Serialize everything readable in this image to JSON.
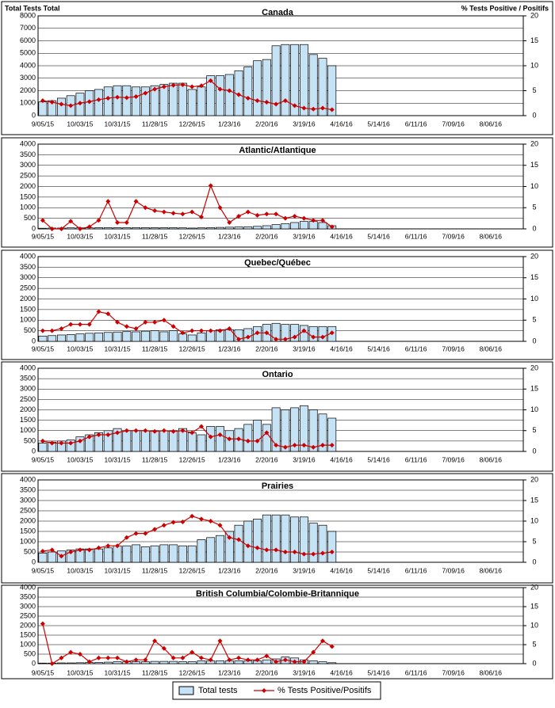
{
  "chart_data": [
    {
      "type": "combo",
      "title": "Canada",
      "y_label": "Total Tests Total",
      "y2_label": "% Tests Positive / Positifs",
      "categories": [
        "9/05/15",
        null,
        null,
        null,
        "10/03/15",
        null,
        null,
        null,
        "10/31/15",
        null,
        null,
        null,
        "11/28/15",
        null,
        null,
        null,
        "12/26/15",
        null,
        null,
        null,
        "1/23/16",
        null,
        null,
        null,
        "2/20/16",
        null,
        null,
        null,
        "3/19/16",
        null,
        null,
        null,
        "4/16/16",
        null,
        null,
        null,
        "5/14/16",
        null,
        null,
        null,
        "6/11/16",
        null,
        null,
        null,
        "7/09/16",
        null,
        null,
        null,
        "8/06/16",
        null,
        null,
        null
      ],
      "ylim": [
        0,
        8000
      ],
      "yticks": [
        0,
        1000,
        2000,
        3000,
        4000,
        5000,
        6000,
        7000,
        8000
      ],
      "y2lim": [
        0,
        20
      ],
      "y2ticks": [
        0,
        5,
        10,
        15,
        20
      ],
      "series": [
        {
          "name": "Total tests",
          "type": "bar",
          "color": "#c6e2f5",
          "values": [
            1100,
            1200,
            1400,
            1600,
            1800,
            2000,
            2100,
            2300,
            2400,
            2400,
            2300,
            2300,
            2400,
            2500,
            2600,
            2600,
            2100,
            2300,
            3200,
            3200,
            3300,
            3600,
            3900,
            4400,
            4500,
            5600,
            5700,
            5700,
            5700,
            4900,
            4600,
            4000,
            null,
            null,
            null,
            null,
            null,
            null,
            null,
            null,
            null,
            null,
            null,
            null,
            null,
            null,
            null,
            null,
            null,
            null,
            null,
            null
          ]
        },
        {
          "name": "% Tests Positive/Positifs",
          "type": "line",
          "axis": "y2",
          "color": "#cc0000",
          "values": [
            3,
            2.7,
            2.3,
            2,
            2.5,
            2.8,
            3.2,
            3.5,
            3.7,
            3.6,
            3.8,
            4.5,
            5.3,
            5.8,
            6.1,
            6.2,
            5.8,
            6,
            7,
            5.3,
            5,
            4.2,
            3.5,
            3,
            2.7,
            2.3,
            3,
            2,
            1.5,
            1.3,
            1.5,
            1.2,
            null,
            null,
            null,
            null,
            null,
            null,
            null,
            null,
            null,
            null,
            null,
            null,
            null,
            null,
            null,
            null,
            null,
            null,
            null,
            null
          ]
        }
      ]
    },
    {
      "type": "combo",
      "title": "Atlantic/Atlantique",
      "categories": [
        "9/05/15",
        null,
        null,
        null,
        "10/03/15",
        null,
        null,
        null,
        "10/31/15",
        null,
        null,
        null,
        "11/28/15",
        null,
        null,
        null,
        "12/26/15",
        null,
        null,
        null,
        "1/23/16",
        null,
        null,
        null,
        "2/20/16",
        null,
        null,
        null,
        "3/19/16",
        null,
        null,
        null,
        "4/16/16",
        null,
        null,
        null,
        "5/14/16",
        null,
        null,
        null,
        "6/11/16",
        null,
        null,
        null,
        "7/09/16",
        null,
        null,
        null,
        "8/06/16",
        null,
        null,
        null
      ],
      "ylim": [
        0,
        4000
      ],
      "yticks": [
        0,
        500,
        1000,
        1500,
        2000,
        2500,
        3000,
        3500,
        4000
      ],
      "y2lim": [
        0,
        20
      ],
      "y2ticks": [
        0,
        5,
        10,
        15,
        20
      ],
      "series": [
        {
          "type": "bar",
          "color": "#c6e2f5",
          "values": [
            30,
            40,
            40,
            50,
            50,
            50,
            60,
            60,
            60,
            60,
            60,
            60,
            60,
            60,
            60,
            50,
            40,
            50,
            60,
            70,
            80,
            90,
            100,
            120,
            150,
            200,
            250,
            300,
            350,
            350,
            300,
            150,
            null,
            null,
            null,
            null,
            null,
            null,
            null,
            null,
            null,
            null,
            null,
            null,
            null,
            null,
            null,
            null,
            null,
            null,
            null,
            null
          ]
        },
        {
          "type": "line",
          "axis": "y2",
          "color": "#cc0000",
          "values": [
            2,
            0,
            0,
            1.8,
            0,
            0.5,
            2,
            6.5,
            1.5,
            1.5,
            6.5,
            5,
            4.3,
            4,
            3.7,
            3.5,
            4,
            2.8,
            10.2,
            5,
            1.5,
            3,
            4,
            3.2,
            3.5,
            3.5,
            2.5,
            3,
            2.5,
            2,
            2,
            0.5,
            null,
            null,
            null,
            null,
            null,
            null,
            null,
            null,
            null,
            null,
            null,
            null,
            null,
            null,
            null,
            null,
            null,
            null,
            null,
            null
          ]
        }
      ]
    },
    {
      "type": "combo",
      "title": "Quebec/Québec",
      "categories": [
        "9/05/15",
        null,
        null,
        null,
        "10/03/15",
        null,
        null,
        null,
        "10/31/15",
        null,
        null,
        null,
        "11/28/15",
        null,
        null,
        null,
        "12/26/15",
        null,
        null,
        null,
        "1/23/16",
        null,
        null,
        null,
        "2/20/16",
        null,
        null,
        null,
        "3/19/16",
        null,
        null,
        null,
        "4/16/16",
        null,
        null,
        null,
        "5/14/16",
        null,
        null,
        null,
        "6/11/16",
        null,
        null,
        null,
        "7/09/16",
        null,
        null,
        null,
        "8/06/16",
        null,
        null,
        null
      ],
      "ylim": [
        0,
        4000
      ],
      "yticks": [
        0,
        500,
        1000,
        1500,
        2000,
        2500,
        3000,
        3500,
        4000
      ],
      "y2lim": [
        0,
        20
      ],
      "y2ticks": [
        0,
        5,
        10,
        15,
        20
      ],
      "series": [
        {
          "type": "bar",
          "color": "#c6e2f5",
          "values": [
            250,
            270,
            300,
            320,
            350,
            380,
            400,
            420,
            440,
            460,
            450,
            480,
            500,
            450,
            500,
            350,
            300,
            400,
            500,
            550,
            550,
            550,
            600,
            700,
            800,
            850,
            800,
            800,
            750,
            700,
            700,
            700,
            null,
            null,
            null,
            null,
            null,
            null,
            null,
            null,
            null,
            null,
            null,
            null,
            null,
            null,
            null,
            null,
            null,
            null,
            null,
            null
          ]
        },
        {
          "type": "line",
          "axis": "y2",
          "color": "#cc0000",
          "values": [
            2.5,
            2.5,
            3,
            4,
            4,
            4,
            7,
            6.5,
            4.5,
            3.5,
            3,
            4.5,
            4.5,
            5,
            3.5,
            2,
            2.5,
            2.5,
            2.5,
            2.5,
            3,
            0.5,
            1,
            2,
            2,
            0.5,
            0.5,
            1,
            2.5,
            1,
            1,
            2,
            null,
            null,
            null,
            null,
            null,
            null,
            null,
            null,
            null,
            null,
            null,
            null,
            null,
            null,
            null,
            null,
            null,
            null,
            null,
            null
          ]
        }
      ]
    },
    {
      "type": "combo",
      "title": "Ontario",
      "categories": [
        "9/05/15",
        null,
        null,
        null,
        "10/03/15",
        null,
        null,
        null,
        "10/31/15",
        null,
        null,
        null,
        "11/28/15",
        null,
        null,
        null,
        "12/26/15",
        null,
        null,
        null,
        "1/23/16",
        null,
        null,
        null,
        "2/20/16",
        null,
        null,
        null,
        "3/19/16",
        null,
        null,
        null,
        "4/16/16",
        null,
        null,
        null,
        "5/14/16",
        null,
        null,
        null,
        "6/11/16",
        null,
        null,
        null,
        "7/09/16",
        null,
        null,
        null,
        "8/06/16",
        null,
        null,
        null
      ],
      "ylim": [
        0,
        4000
      ],
      "yticks": [
        0,
        500,
        1000,
        1500,
        2000,
        2500,
        3000,
        3500,
        4000
      ],
      "y2lim": [
        0,
        20
      ],
      "y2ticks": [
        0,
        5,
        10,
        15,
        20
      ],
      "series": [
        {
          "type": "bar",
          "color": "#c6e2f5",
          "values": [
            400,
            450,
            500,
            550,
            700,
            800,
            900,
            1000,
            1100,
            1000,
            1000,
            1000,
            1000,
            1000,
            1000,
            1100,
            900,
            800,
            1200,
            1200,
            1000,
            1100,
            1300,
            1500,
            1300,
            2100,
            2000,
            2100,
            2200,
            2000,
            1800,
            1600,
            null,
            null,
            null,
            null,
            null,
            null,
            null,
            null,
            null,
            null,
            null,
            null,
            null,
            null,
            null,
            null,
            null,
            null,
            null,
            null
          ]
        },
        {
          "type": "line",
          "axis": "y2",
          "color": "#cc0000",
          "values": [
            2.5,
            2,
            2,
            2,
            2.5,
            3.5,
            4,
            4,
            4.5,
            5,
            5,
            5,
            4.8,
            5,
            4.8,
            5,
            4.5,
            6,
            3.5,
            4,
            3,
            3,
            2.5,
            2.5,
            4.5,
            1.5,
            1,
            1.5,
            1.5,
            1,
            1.5,
            1.5,
            null,
            null,
            null,
            null,
            null,
            null,
            null,
            null,
            null,
            null,
            null,
            null,
            null,
            null,
            null,
            null,
            null,
            null,
            null,
            null
          ]
        }
      ]
    },
    {
      "type": "combo",
      "title": "Prairies",
      "categories": [
        "9/05/15",
        null,
        null,
        null,
        "10/03/15",
        null,
        null,
        null,
        "10/31/15",
        null,
        null,
        null,
        "11/28/15",
        null,
        null,
        null,
        "12/26/15",
        null,
        null,
        null,
        "1/23/16",
        null,
        null,
        null,
        "2/20/16",
        null,
        null,
        null,
        "3/19/16",
        null,
        null,
        null,
        "4/16/16",
        null,
        null,
        null,
        "5/14/16",
        null,
        null,
        null,
        "6/11/16",
        null,
        null,
        null,
        "7/09/16",
        null,
        null,
        null,
        "8/06/16",
        null,
        null,
        null
      ],
      "ylim": [
        0,
        4000
      ],
      "yticks": [
        0,
        500,
        1000,
        1500,
        2000,
        2500,
        3000,
        3500,
        4000
      ],
      "y2lim": [
        0,
        20
      ],
      "y2ticks": [
        0,
        5,
        10,
        15,
        20
      ],
      "series": [
        {
          "type": "bar",
          "color": "#c6e2f5",
          "values": [
            450,
            500,
            550,
            600,
            650,
            650,
            650,
            700,
            800,
            800,
            850,
            750,
            800,
            850,
            850,
            800,
            800,
            1100,
            1200,
            1300,
            1500,
            1800,
            2000,
            2100,
            2300,
            2300,
            2300,
            2200,
            2200,
            1900,
            1800,
            1500,
            null,
            null,
            null,
            null,
            null,
            null,
            null,
            null,
            null,
            null,
            null,
            null,
            null,
            null,
            null,
            null,
            null,
            null,
            null,
            null
          ]
        },
        {
          "type": "line",
          "axis": "y2",
          "color": "#cc0000",
          "values": [
            2.7,
            3,
            1.5,
            2.5,
            3,
            3,
            3.5,
            4,
            4,
            6,
            7,
            7,
            8,
            9,
            9.7,
            9.8,
            11.2,
            10.5,
            10,
            9,
            6,
            5.5,
            4,
            3.5,
            3,
            3,
            2.5,
            2.5,
            2,
            2,
            2.2,
            2.5,
            null,
            null,
            null,
            null,
            null,
            null,
            null,
            null,
            null,
            null,
            null,
            null,
            null,
            null,
            null,
            null,
            null,
            null,
            null,
            null
          ]
        }
      ]
    },
    {
      "type": "combo",
      "title": "British Columbia/Colombie-Britannique",
      "categories": [
        "9/05/15",
        null,
        null,
        null,
        "10/03/15",
        null,
        null,
        null,
        "10/31/15",
        null,
        null,
        null,
        "11/28/15",
        null,
        null,
        null,
        "12/26/15",
        null,
        null,
        null,
        "1/23/16",
        null,
        null,
        null,
        "2/20/16",
        null,
        null,
        null,
        "3/19/16",
        null,
        null,
        null,
        "4/16/16",
        null,
        null,
        null,
        "5/14/16",
        null,
        null,
        null,
        "6/11/16",
        null,
        null,
        null,
        "7/09/16",
        null,
        null,
        null,
        "8/06/16",
        null,
        null,
        null
      ],
      "ylim": [
        0,
        4000
      ],
      "yticks": [
        0,
        500,
        1000,
        1500,
        2000,
        2500,
        3000,
        3500,
        4000
      ],
      "y2lim": [
        0,
        20
      ],
      "y2ticks": [
        0,
        5,
        10,
        15,
        20
      ],
      "series": [
        {
          "type": "bar",
          "color": "#c6e2f5",
          "values": [
            30,
            30,
            40,
            40,
            50,
            60,
            60,
            80,
            100,
            100,
            100,
            100,
            120,
            120,
            120,
            100,
            100,
            150,
            150,
            150,
            150,
            150,
            150,
            150,
            200,
            250,
            350,
            300,
            200,
            150,
            100,
            50,
            null,
            null,
            null,
            null,
            null,
            null,
            null,
            null,
            null,
            null,
            null,
            null,
            null,
            null,
            null,
            null,
            null,
            null,
            null,
            null
          ]
        },
        {
          "type": "line",
          "axis": "y2",
          "color": "#cc0000",
          "values": [
            10.5,
            0,
            1.5,
            3,
            2.5,
            0.5,
            1.5,
            1.5,
            1.5,
            0.5,
            1,
            1,
            6,
            4,
            1.5,
            1.5,
            3,
            1.5,
            1,
            6,
            1,
            1.5,
            1,
            1,
            2,
            0.5,
            1,
            0.5,
            0.5,
            3,
            6,
            4.5,
            null,
            null,
            null,
            null,
            null,
            null,
            null,
            null,
            null,
            null,
            null,
            null,
            null,
            null,
            null,
            null,
            null,
            null,
            null,
            null
          ]
        }
      ]
    }
  ]
}
